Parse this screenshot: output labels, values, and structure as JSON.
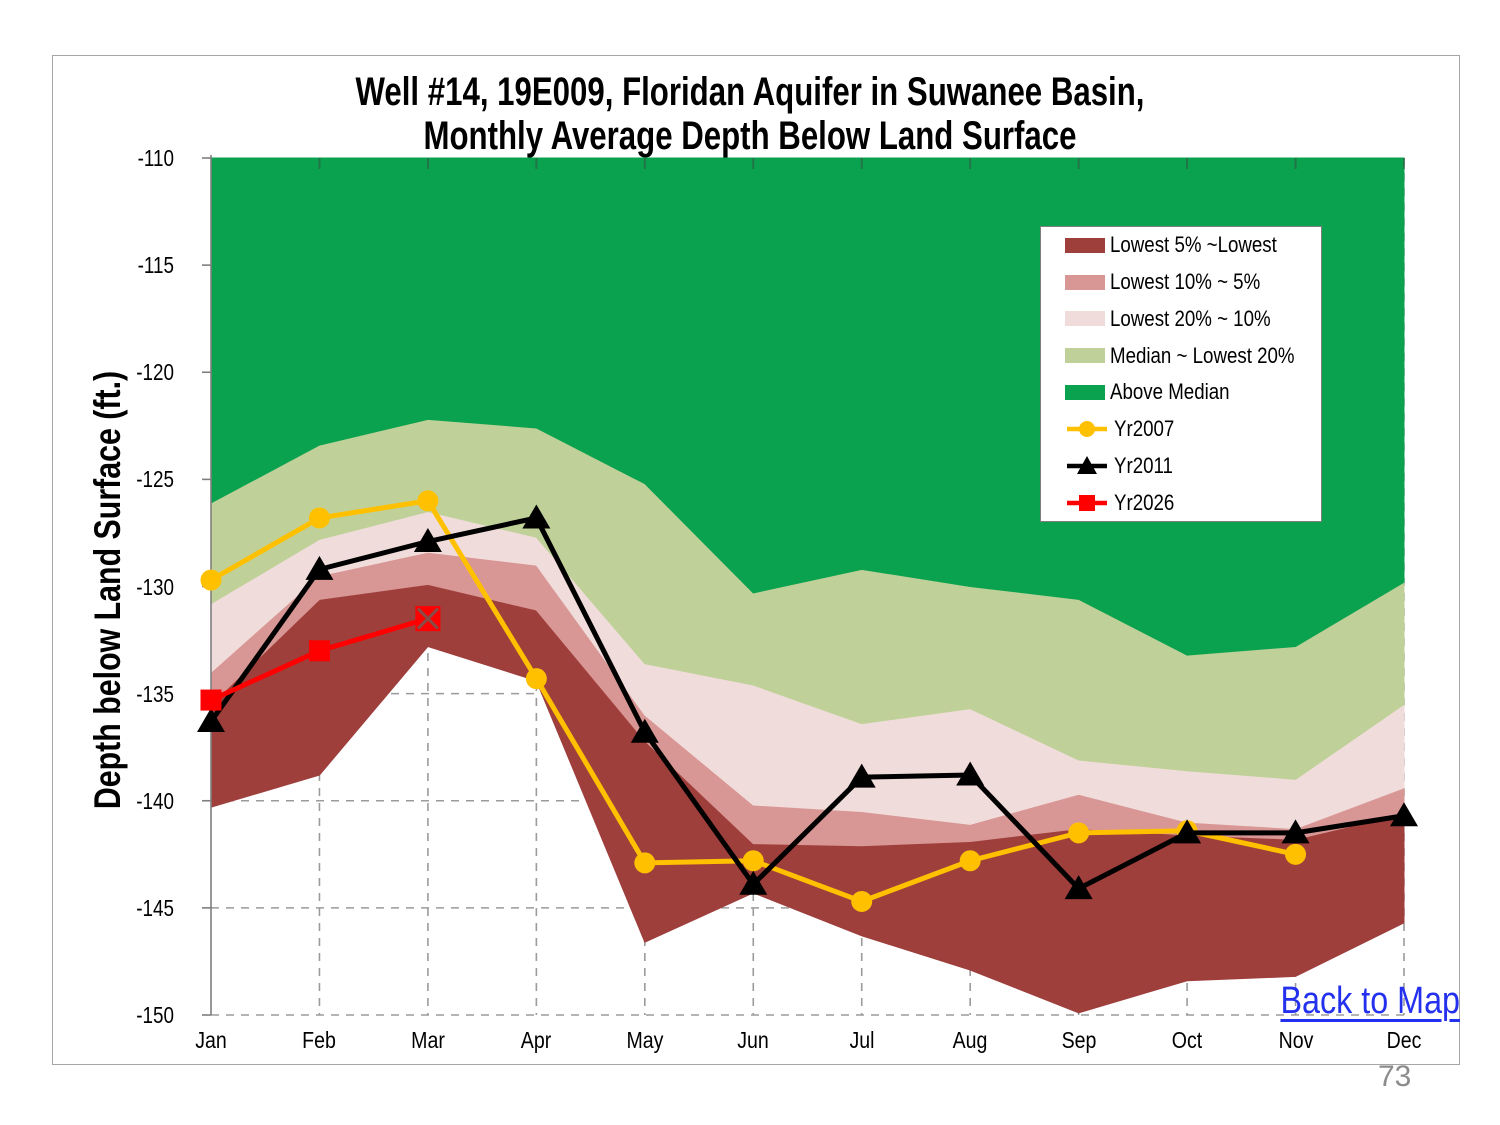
{
  "page": {
    "number": "73"
  },
  "chart": {
    "title_line1": "Well #14, 19E009, Floridan Aquifer in Suwanee Basin,",
    "title_line2": "Monthly Average Depth Below  Land Surface",
    "y_axis_title": "Depth below Land Surface (ft.)",
    "back_link": "Back to Map"
  },
  "chart_data": {
    "type": "area",
    "subtype": "percentile-bands-with-line-overlays",
    "categories": [
      "Jan",
      "Feb",
      "Mar",
      "Apr",
      "May",
      "Jun",
      "Jul",
      "Aug",
      "Sep",
      "Oct",
      "Nov",
      "Dec"
    ],
    "y_ticks": [
      -110,
      -115,
      -120,
      -125,
      -130,
      -135,
      -140,
      -145,
      -150
    ],
    "ylim": [
      -150,
      -110
    ],
    "ylabel": "Depth below Land Surface (ft.)",
    "grid": "dashed-gray",
    "legend_position": "inside-top-right",
    "bands": [
      {
        "name": "Lowest 5% ~Lowest",
        "color": "#9e3f3c",
        "upper": [
          -135.5,
          -130.6,
          -129.9,
          -131.1,
          -137.2,
          -142.0,
          -142.1,
          -141.9,
          -141.3,
          -141.6,
          -141.8,
          -140.6
        ],
        "lower": [
          -140.3,
          -138.8,
          -132.8,
          -134.4,
          -146.6,
          -144.3,
          -146.3,
          -147.9,
          -149.9,
          -148.4,
          -148.2,
          -145.7
        ]
      },
      {
        "name": "Lowest 10% ~ 5%",
        "color": "#d89694",
        "upper": [
          -134.0,
          -129.5,
          -128.4,
          -129.0,
          -136.0,
          -140.2,
          -140.5,
          -141.1,
          -139.7,
          -141.0,
          -141.3,
          -139.4
        ],
        "lower": [
          -135.5,
          -130.6,
          -129.9,
          -131.1,
          -137.2,
          -142.0,
          -142.1,
          -141.9,
          -141.3,
          -141.6,
          -141.8,
          -140.6
        ]
      },
      {
        "name": "Lowest 20% ~ 10%",
        "color": "#f0dcda",
        "upper": [
          -130.8,
          -127.8,
          -126.5,
          -127.7,
          -133.6,
          -134.6,
          -136.4,
          -135.7,
          -138.1,
          -138.6,
          -139.0,
          -135.5
        ],
        "lower": [
          -134.0,
          -129.5,
          -128.4,
          -129.0,
          -136.0,
          -140.2,
          -140.5,
          -141.1,
          -139.7,
          -141.0,
          -141.3,
          -139.4
        ]
      },
      {
        "name": "Median ~ Lowest 20%",
        "color": "#bfd199",
        "upper": [
          -126.1,
          -123.4,
          -122.2,
          -122.6,
          -125.2,
          -130.3,
          -129.2,
          -130.0,
          -130.6,
          -133.2,
          -132.8,
          -129.8
        ],
        "lower": [
          -130.8,
          -127.8,
          -126.5,
          -127.7,
          -133.6,
          -134.6,
          -136.4,
          -135.7,
          -138.1,
          -138.6,
          -139.0,
          -135.5
        ]
      },
      {
        "name": "Above Median",
        "color": "#0ba24f",
        "upper": [
          -110,
          -110,
          -110,
          -110,
          -110,
          -110,
          -110,
          -110,
          -110,
          -110,
          -110,
          -110
        ],
        "lower": [
          -126.1,
          -123.4,
          -122.2,
          -122.6,
          -125.2,
          -130.3,
          -129.2,
          -130.0,
          -130.6,
          -133.2,
          -132.8,
          -129.8
        ]
      }
    ],
    "series": [
      {
        "name": "Yr2007",
        "color": "#ffc000",
        "marker": "circle",
        "values": [
          -129.7,
          -126.8,
          -126.0,
          -134.3,
          -142.9,
          -142.8,
          -144.7,
          -142.8,
          -141.5,
          -141.4,
          -142.5,
          null
        ]
      },
      {
        "name": "Yr2011",
        "color": "#000000",
        "marker": "triangle",
        "values": [
          -136.3,
          -129.2,
          -127.9,
          -126.8,
          -136.8,
          -143.9,
          -138.9,
          -138.8,
          -144.1,
          -141.5,
          -141.5,
          -140.7
        ]
      },
      {
        "name": "Yr2026",
        "color": "#ff0000",
        "marker": "square",
        "end_marker": "square-x",
        "values": [
          -135.3,
          -133.0,
          -131.5,
          null,
          null,
          null,
          null,
          null,
          null,
          null,
          null,
          null
        ]
      }
    ],
    "legend": [
      {
        "label": "Lowest 5% ~Lowest",
        "type": "area",
        "color": "#9e3f3c"
      },
      {
        "label": "Lowest 10% ~ 5%",
        "type": "area",
        "color": "#d89694"
      },
      {
        "label": "Lowest 20% ~ 10%",
        "type": "area",
        "color": "#f0dcda"
      },
      {
        "label": "Median ~ Lowest 20%",
        "type": "area",
        "color": "#bfd199"
      },
      {
        "label": "Above Median",
        "type": "area",
        "color": "#0ba24f"
      },
      {
        "label": "Yr2007",
        "type": "line",
        "color": "#ffc000",
        "marker": "circle"
      },
      {
        "label": "Yr2011",
        "type": "line",
        "color": "#000000",
        "marker": "triangle"
      },
      {
        "label": "Yr2026",
        "type": "line",
        "color": "#ff0000",
        "marker": "square"
      }
    ]
  }
}
